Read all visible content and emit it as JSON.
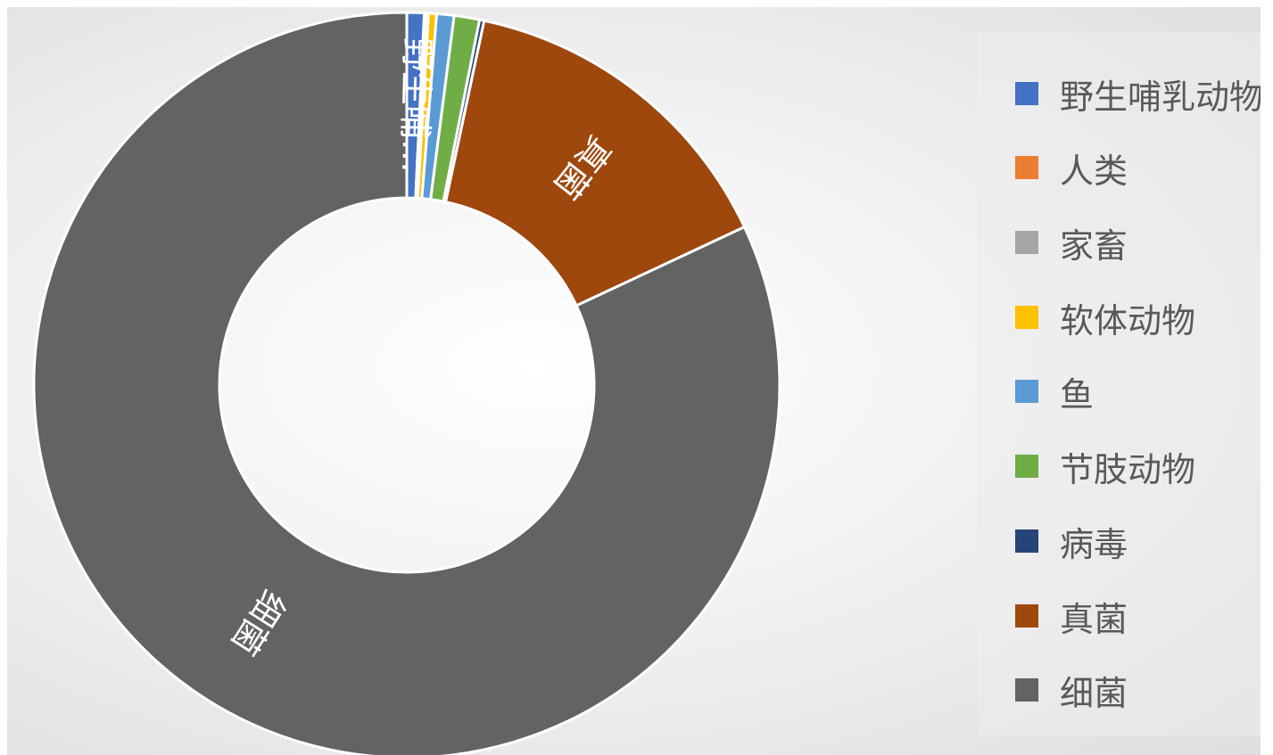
{
  "chart_data": {
    "type": "pie",
    "subtype": "doughnut",
    "title": "",
    "legend_position": "right",
    "categories": [
      "野生哺乳动物",
      "人类",
      "家畜",
      "软体动物",
      "鱼",
      "节肢动物",
      "病毒",
      "真菌",
      "细菌"
    ],
    "values": [
      0.0075,
      0.0006,
      0.0012,
      0.0035,
      0.0075,
      0.011,
      0.002,
      0.147,
      0.82
    ],
    "colors": [
      "#4472c4",
      "#ed7d31",
      "#a5a5a5",
      "#ffc000",
      "#5b9bd5",
      "#70ad47",
      "#264478",
      "#9e480e",
      "#636363"
    ],
    "slice_labels": {
      "细菌": "细菌",
      "真菌": "真菌",
      "野生哺乳动物": "野生哺…"
    }
  }
}
